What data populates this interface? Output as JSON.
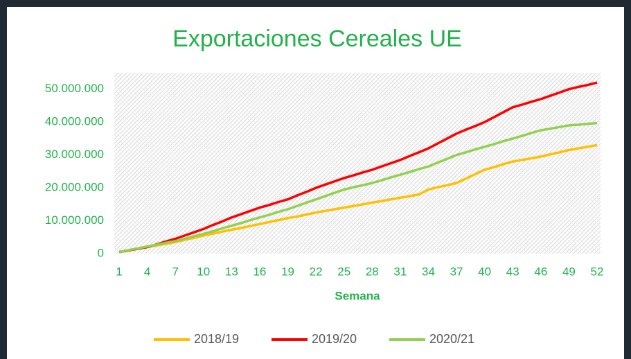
{
  "chart_data": {
    "type": "line",
    "title": "Exportaciones Cereales UE",
    "x_label": "Semana",
    "x": [
      1,
      2,
      3,
      4,
      5,
      6,
      7,
      8,
      9,
      10,
      11,
      12,
      13,
      14,
      15,
      16,
      17,
      18,
      19,
      20,
      21,
      22,
      23,
      24,
      25,
      26,
      27,
      28,
      29,
      30,
      31,
      32,
      33,
      34,
      35,
      36,
      37,
      38,
      39,
      40,
      41,
      42,
      43,
      44,
      45,
      46,
      47,
      48,
      49,
      50,
      51,
      52
    ],
    "xlim": [
      1,
      52
    ],
    "xticks": [
      1,
      4,
      7,
      10,
      13,
      16,
      19,
      22,
      25,
      28,
      31,
      34,
      37,
      40,
      43,
      46,
      49,
      52
    ],
    "ylim": [
      0,
      55000000
    ],
    "yticks": [
      0,
      {
        "value": 10000000,
        "label": "10.000.000"
      },
      {
        "value": 20000000,
        "label": "20.000.000"
      },
      {
        "value": 30000000,
        "label": "30.000.000"
      },
      {
        "value": 40000000,
        "label": "40.000.000"
      },
      {
        "value": 50000000,
        "label": "50.000.000"
      }
    ],
    "legend": "bottom",
    "series": [
      {
        "name": "2018/19",
        "color": "#ffc000",
        "values": [
          500000,
          1000000,
          1500000,
          2000000,
          2500000,
          3000000,
          3500000,
          4200000,
          4800000,
          5500000,
          6100000,
          6700000,
          7300000,
          7800000,
          8400000,
          9000000,
          9600000,
          10200000,
          10800000,
          11300000,
          11900000,
          12500000,
          13000000,
          13500000,
          14000000,
          14500000,
          15000000,
          15500000,
          16000000,
          16500000,
          17000000,
          17500000,
          18000000,
          19500000,
          20200000,
          20800000,
          21500000,
          22800000,
          24200000,
          25500000,
          26300000,
          27200000,
          28000000,
          28500000,
          29000000,
          29500000,
          30200000,
          30800000,
          31500000,
          32000000,
          32500000,
          33000000
        ]
      },
      {
        "name": "2019/20",
        "color": "#ff0000",
        "values": [
          500000,
          1000000,
          1500000,
          2000000,
          2800000,
          3700000,
          4500000,
          5500000,
          6500000,
          7500000,
          8700000,
          9800000,
          11000000,
          12000000,
          13000000,
          14000000,
          14800000,
          15700000,
          16500000,
          17700000,
          18800000,
          20000000,
          21000000,
          22000000,
          23000000,
          23800000,
          24700000,
          25500000,
          26500000,
          27500000,
          28500000,
          29700000,
          30800000,
          32000000,
          33500000,
          35000000,
          36500000,
          37700000,
          38800000,
          40000000,
          41500000,
          43000000,
          44500000,
          45300000,
          46200000,
          47000000,
          48000000,
          49000000,
          50000000,
          50700000,
          51300000,
          52000000
        ]
      },
      {
        "name": "2020/21",
        "color": "#92d050",
        "values": [
          500000,
          1100000,
          1600000,
          2200000,
          2700000,
          3300000,
          3800000,
          4500000,
          5300000,
          6000000,
          6800000,
          7700000,
          8500000,
          9300000,
          10200000,
          11000000,
          11800000,
          12700000,
          13500000,
          14500000,
          15500000,
          16500000,
          17500000,
          18500000,
          19500000,
          20200000,
          20800000,
          21500000,
          22300000,
          23200000,
          24000000,
          24800000,
          25700000,
          26500000,
          27700000,
          28800000,
          30000000,
          30800000,
          31700000,
          32500000,
          33300000,
          34200000,
          35000000,
          35800000,
          36700000,
          37500000,
          38000000,
          38500000,
          39000000,
          39200000,
          39500000,
          39700000
        ]
      }
    ]
  }
}
